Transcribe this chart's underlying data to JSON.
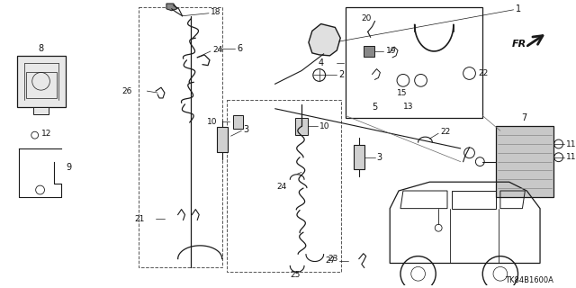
{
  "background_color": "#ffffff",
  "line_color": "#1a1a1a",
  "text_color": "#111111",
  "diagram_code": "TK84B1600A",
  "figsize": [
    6.4,
    3.2
  ],
  "dpi": 100
}
